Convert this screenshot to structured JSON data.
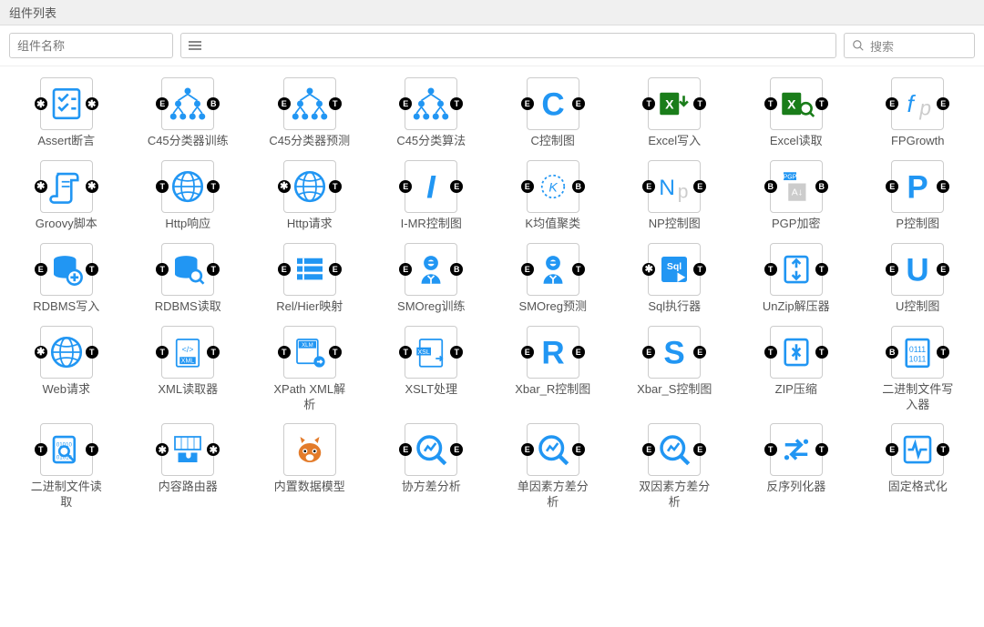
{
  "title": "组件列表",
  "name_placeholder": "组件名称",
  "search_placeholder": "搜索",
  "primary_color": "#2196f3",
  "green_color": "#1a7d1a",
  "orange_color": "#e37b2a",
  "port_bg": "#000000",
  "border_color": "#cccccc",
  "components": [
    {
      "label": "Assert断言",
      "icon": "checklist",
      "pl": "*",
      "pr": "*"
    },
    {
      "label": "C45分类器训练",
      "icon": "tree",
      "pl": "E",
      "pr": "B"
    },
    {
      "label": "C45分类器预测",
      "icon": "tree",
      "pl": "E",
      "pr": "T"
    },
    {
      "label": "C45分类算法",
      "icon": "tree",
      "pl": "E",
      "pr": "T"
    },
    {
      "label": "C控制图",
      "icon": "letter-c",
      "pl": "E",
      "pr": "E"
    },
    {
      "label": "Excel写入",
      "icon": "excel-in",
      "pl": "T",
      "pr": "T"
    },
    {
      "label": "Excel读取",
      "icon": "excel-out",
      "pl": "T",
      "pr": "T"
    },
    {
      "label": "FPGrowth",
      "icon": "fp",
      "pl": "E",
      "pr": "E"
    },
    {
      "label": "Groovy脚本",
      "icon": "scroll",
      "pl": "*",
      "pr": "*"
    },
    {
      "label": "Http响应",
      "icon": "globe",
      "pl": "T",
      "pr": "T"
    },
    {
      "label": "Http请求",
      "icon": "globe",
      "pl": "*",
      "pr": "T"
    },
    {
      "label": "I-MR控制图",
      "icon": "letter-i",
      "pl": "E",
      "pr": "E"
    },
    {
      "label": "K均值聚类",
      "icon": "k-circle",
      "pl": "E",
      "pr": "B"
    },
    {
      "label": "NP控制图",
      "icon": "np",
      "pl": "E",
      "pr": "E"
    },
    {
      "label": "PGP加密",
      "icon": "pgp",
      "pl": "B",
      "pr": "B"
    },
    {
      "label": "P控制图",
      "icon": "letter-p",
      "pl": "E",
      "pr": "E"
    },
    {
      "label": "RDBMS写入",
      "icon": "db-plus",
      "pl": "E",
      "pr": "T"
    },
    {
      "label": "RDBMS读取",
      "icon": "db-search",
      "pl": "T",
      "pr": "T"
    },
    {
      "label": "Rel/Hier映射",
      "icon": "rows",
      "pl": "E",
      "pr": "E"
    },
    {
      "label": "SMOreg训练",
      "icon": "person",
      "pl": "E",
      "pr": "B"
    },
    {
      "label": "SMOreg预测",
      "icon": "person",
      "pl": "E",
      "pr": "T"
    },
    {
      "label": "Sql执行器",
      "icon": "sql",
      "pl": "*",
      "pr": "T"
    },
    {
      "label": "UnZip解压器",
      "icon": "unzip",
      "pl": "T",
      "pr": "T"
    },
    {
      "label": "U控制图",
      "icon": "letter-u",
      "pl": "E",
      "pr": "E"
    },
    {
      "label": "Web请求",
      "icon": "globe",
      "pl": "*",
      "pr": "T"
    },
    {
      "label": "XML读取器",
      "icon": "xml",
      "pl": "T",
      "pr": "T"
    },
    {
      "label": "XPath XML解析",
      "icon": "xlm",
      "pl": "T",
      "pr": "T"
    },
    {
      "label": "XSLT处理",
      "icon": "xsl",
      "pl": "T",
      "pr": "T"
    },
    {
      "label": "Xbar_R控制图",
      "icon": "letter-r",
      "pl": "E",
      "pr": "E"
    },
    {
      "label": "Xbar_S控制图",
      "icon": "letter-s",
      "pl": "E",
      "pr": "E"
    },
    {
      "label": "ZIP压缩",
      "icon": "zip",
      "pl": "T",
      "pr": "T"
    },
    {
      "label": "二进制文件写入器",
      "icon": "binary",
      "pl": "B",
      "pr": "T"
    },
    {
      "label": "二进制文件读取",
      "icon": "bin-search",
      "pl": "T",
      "pr": "T"
    },
    {
      "label": "内容路由器",
      "icon": "puzzle",
      "pl": "*",
      "pr": "*"
    },
    {
      "label": "内置数据模型",
      "icon": "squirrel",
      "pl": "",
      "pr": ""
    },
    {
      "label": "协方差分析",
      "icon": "magnify",
      "pl": "E",
      "pr": "E"
    },
    {
      "label": "单因素方差分析",
      "icon": "magnify",
      "pl": "E",
      "pr": "E"
    },
    {
      "label": "双因素方差分析",
      "icon": "magnify",
      "pl": "E",
      "pr": "E"
    },
    {
      "label": "反序列化器",
      "icon": "swap",
      "pl": "T",
      "pr": "T"
    },
    {
      "label": "固定格式化",
      "icon": "pulse",
      "pl": "E",
      "pr": "T"
    }
  ]
}
